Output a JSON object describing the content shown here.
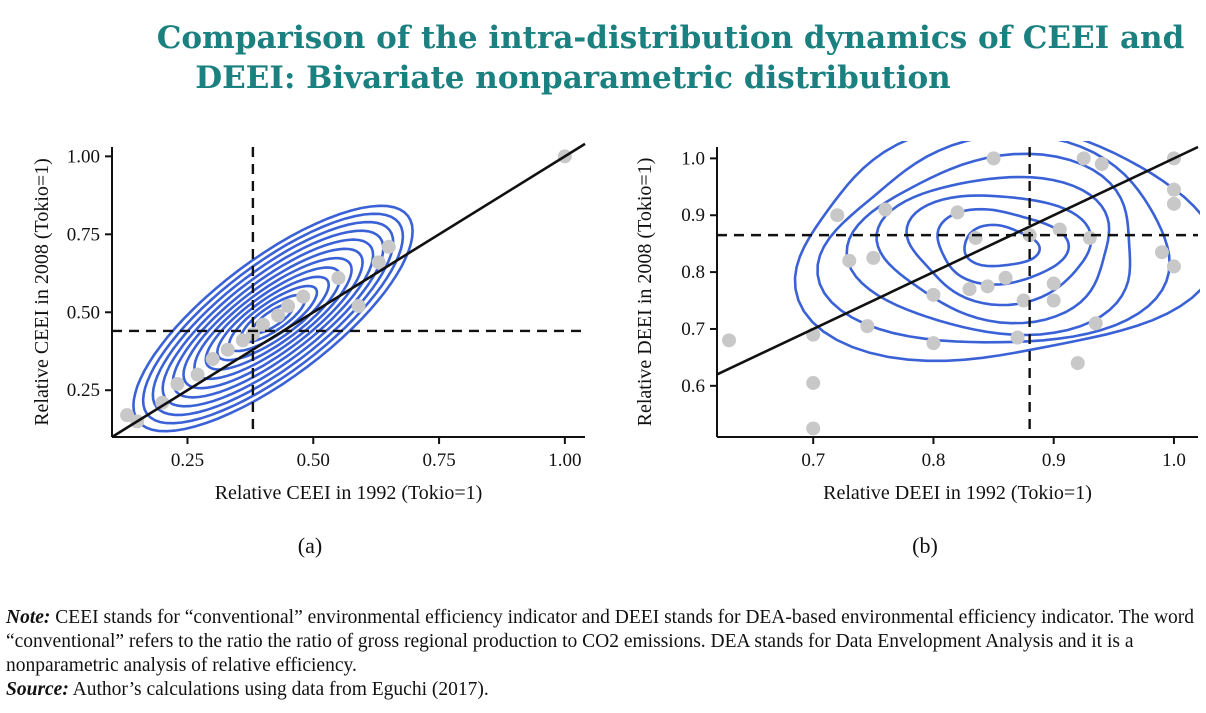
{
  "title": {
    "line1": "Comparison of the intra-distribution dynamics of CEEI and",
    "line2": "DEEI: Bivariate nonparametric distribution"
  },
  "colors": {
    "title": "#1a8080",
    "contour": "#3a62d6",
    "points": "#c8c8c8",
    "lines": "#111111"
  },
  "chart_data": [
    {
      "type": "scatter",
      "panel_label": "(a)",
      "xlabel": "Relative CEEI in 1992 (Tokio=1)",
      "ylabel": "Relative CEEI in 2008 (Tokio=1)",
      "xlim": [
        0.1,
        1.04
      ],
      "ylim": [
        0.1,
        1.03
      ],
      "xticks": [
        0.25,
        0.5,
        0.75,
        1.0
      ],
      "xtick_labels": [
        "0.25",
        "0.50",
        "0.75",
        "1.00"
      ],
      "yticks": [
        0.25,
        0.5,
        0.75,
        1.0
      ],
      "ytick_labels": [
        "0.25",
        "0.50",
        "0.75",
        "1.00"
      ],
      "x": [
        0.13,
        0.15,
        0.2,
        0.23,
        0.27,
        0.3,
        0.33,
        0.36,
        0.38,
        0.4,
        0.43,
        0.45,
        0.48,
        0.55,
        0.59,
        0.63,
        0.65,
        1.0
      ],
      "y": [
        0.17,
        0.15,
        0.21,
        0.27,
        0.3,
        0.35,
        0.38,
        0.41,
        0.43,
        0.46,
        0.49,
        0.52,
        0.55,
        0.61,
        0.52,
        0.66,
        0.71,
        1.0
      ],
      "vline": 0.38,
      "hline": 0.44,
      "diagonal": "y=x",
      "contour_center": [
        0.42,
        0.48
      ],
      "grid": false
    },
    {
      "type": "scatter",
      "panel_label": "(b)",
      "xlabel": "Relative DEEI in 1992 (Tokio=1)",
      "ylabel": "Relative DEEI in 2008 (Tokio=1)",
      "xlim": [
        0.62,
        1.02
      ],
      "ylim": [
        0.51,
        1.02
      ],
      "xticks": [
        0.7,
        0.8,
        0.9,
        1.0
      ],
      "xtick_labels": [
        "0.7",
        "0.8",
        "0.9",
        "1.0"
      ],
      "yticks": [
        0.6,
        0.7,
        0.8,
        0.9,
        1.0
      ],
      "ytick_labels": [
        "0.6",
        "0.7",
        "0.8",
        "0.9",
        "1.0"
      ],
      "x": [
        0.63,
        0.7,
        0.7,
        0.7,
        0.72,
        0.73,
        0.745,
        0.75,
        0.76,
        0.8,
        0.8,
        0.82,
        0.83,
        0.835,
        0.845,
        0.85,
        0.86,
        0.87,
        0.875,
        0.88,
        0.9,
        0.9,
        0.905,
        0.92,
        0.925,
        0.93,
        0.935,
        0.94,
        0.99,
        1.0,
        1.0,
        1.0,
        1.0
      ],
      "y": [
        0.68,
        0.69,
        0.605,
        0.525,
        0.9,
        0.82,
        0.705,
        0.825,
        0.91,
        0.76,
        0.675,
        0.905,
        0.77,
        0.86,
        0.775,
        1.0,
        0.79,
        0.685,
        0.75,
        0.865,
        0.75,
        0.78,
        0.875,
        0.64,
        1.0,
        0.86,
        0.71,
        0.99,
        0.835,
        1.0,
        0.81,
        0.945,
        0.92
      ],
      "vline": 0.88,
      "hline": 0.865,
      "diagonal": "y=x",
      "contour_center": [
        0.855,
        0.845
      ],
      "grid": false
    }
  ],
  "note": {
    "note_label": "Note:",
    "note_text": " CEEI stands for “conventional” environmental efficiency indicator and DEEI stands for DEA-based environmental efficiency indicator. The word “conventional” refers to the ratio the ratio of gross regional production to CO2 emissions. DEA stands for Data Envelopment Analysis and it is a nonparametric analysis of relative efficiency.",
    "source_label": "Source:",
    "source_text": " Author’s calculations using data from Eguchi (2017)."
  }
}
